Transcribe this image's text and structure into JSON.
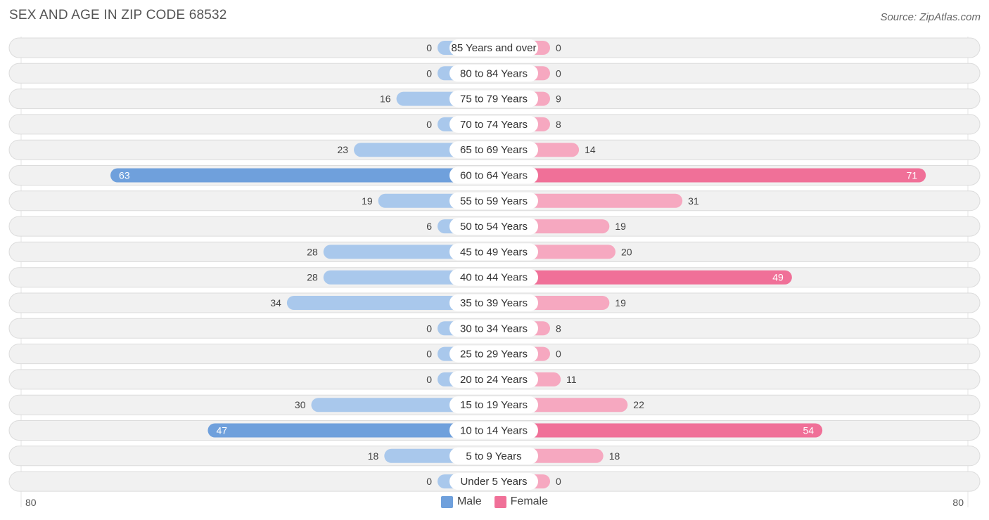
{
  "title": "SEX AND AGE IN ZIP CODE 68532",
  "source": "Source: ZipAtlas.com",
  "colors": {
    "male": "#6fa0dc",
    "male_light": "#a9c8ec",
    "female": "#f07098",
    "female_light": "#f6a8c0",
    "row_bg": "#f1f1f1",
    "row_border": "#dcdcdc"
  },
  "legend": {
    "male_label": "Male",
    "female_label": "Female"
  },
  "axis": {
    "left_label": "80",
    "right_label": "80"
  },
  "chart_data": {
    "type": "bar",
    "orientation": "horizontal-diverging",
    "xlim": [
      -80,
      80
    ],
    "categories": [
      "85 Years and over",
      "80 to 84 Years",
      "75 to 79 Years",
      "70 to 74 Years",
      "65 to 69 Years",
      "60 to 64 Years",
      "55 to 59 Years",
      "50 to 54 Years",
      "45 to 49 Years",
      "40 to 44 Years",
      "35 to 39 Years",
      "30 to 34 Years",
      "25 to 29 Years",
      "20 to 24 Years",
      "15 to 19 Years",
      "10 to 14 Years",
      "5 to 9 Years",
      "Under 5 Years"
    ],
    "series": [
      {
        "name": "Male",
        "values": [
          0,
          0,
          16,
          0,
          23,
          63,
          19,
          6,
          28,
          28,
          34,
          0,
          0,
          0,
          30,
          47,
          18,
          0
        ]
      },
      {
        "name": "Female",
        "values": [
          0,
          0,
          9,
          8,
          14,
          71,
          31,
          19,
          20,
          49,
          19,
          8,
          0,
          11,
          22,
          54,
          18,
          0
        ]
      }
    ],
    "legend_position": "bottom-center"
  }
}
